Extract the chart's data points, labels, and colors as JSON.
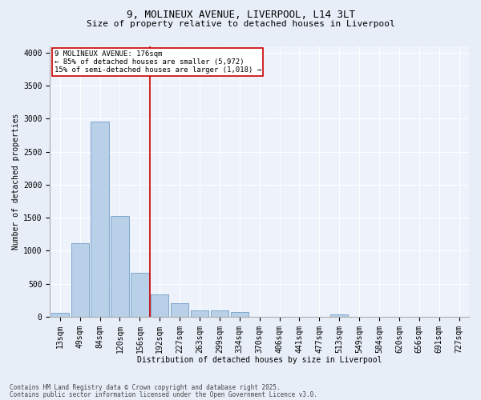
{
  "title_line1": "9, MOLINEUX AVENUE, LIVERPOOL, L14 3LT",
  "title_line2": "Size of property relative to detached houses in Liverpool",
  "xlabel": "Distribution of detached houses by size in Liverpool",
  "ylabel": "Number of detached properties",
  "bar_labels": [
    "13sqm",
    "49sqm",
    "84sqm",
    "120sqm",
    "156sqm",
    "192sqm",
    "227sqm",
    "263sqm",
    "299sqm",
    "334sqm",
    "370sqm",
    "406sqm",
    "441sqm",
    "477sqm",
    "513sqm",
    "549sqm",
    "584sqm",
    "620sqm",
    "656sqm",
    "691sqm",
    "727sqm"
  ],
  "bar_values": [
    55,
    1110,
    2960,
    1530,
    660,
    340,
    200,
    90,
    90,
    65,
    0,
    0,
    0,
    0,
    35,
    0,
    0,
    0,
    0,
    0,
    0
  ],
  "bar_color": "#b8d0e8",
  "bar_edgecolor": "#6090c0",
  "vline_color": "#cc0000",
  "annotation_text": "9 MOLINEUX AVENUE: 176sqm\n← 85% of detached houses are smaller (5,972)\n15% of semi-detached houses are larger (1,018) →",
  "annotation_box_color": "#cc0000",
  "ylim": [
    0,
    4100
  ],
  "yticks": [
    0,
    500,
    1000,
    1500,
    2000,
    2500,
    3000,
    3500,
    4000
  ],
  "footer1": "Contains HM Land Registry data © Crown copyright and database right 2025.",
  "footer2": "Contains public sector information licensed under the Open Government Licence v3.0.",
  "bg_color": "#e8eef8",
  "plot_bg_color": "#eef2fa",
  "title_fontsize": 9,
  "subtitle_fontsize": 8,
  "axis_label_fontsize": 7,
  "tick_fontsize": 7,
  "footer_fontsize": 5.5
}
